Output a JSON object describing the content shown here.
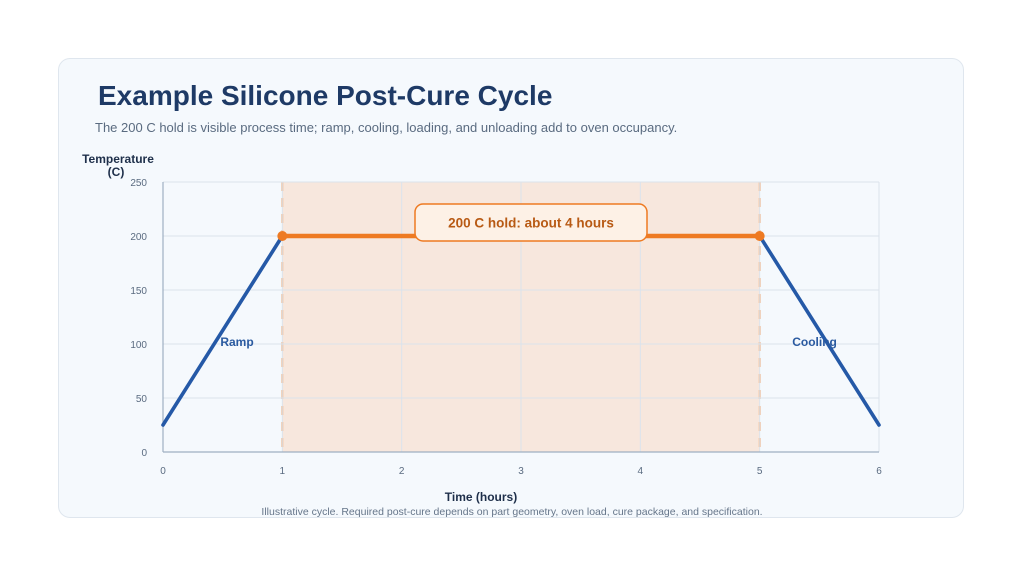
{
  "title": "Example Silicone Post-Cure Cycle",
  "subtitle": "The 200 C hold is visible process time; ramp, cooling, loading, and unloading add to oven occupancy.",
  "footnote": "Illustrative cycle. Required post-cure depends on part geometry, oven load, cure package, and specification.",
  "colors": {
    "line": "#2559a7",
    "hold": "#ee7a22",
    "hold_region": "#f7e7dd",
    "hold_boundary": "#f08a3a",
    "grid": "#dbe3ec",
    "axis": "#9fb0c2"
  },
  "chart_data": {
    "type": "line",
    "xlabel": "Time (hours)",
    "ylabel": "Temperature (C)",
    "xlim": [
      0,
      6
    ],
    "ylim": [
      0,
      250
    ],
    "x_ticks": [
      0,
      1,
      2,
      3,
      4,
      5,
      6
    ],
    "y_ticks": [
      0,
      50,
      100,
      150,
      200,
      250
    ],
    "grid": true,
    "series": [
      {
        "x": [
          0,
          1,
          5,
          6
        ],
        "y": [
          25,
          200,
          200,
          25
        ]
      }
    ],
    "hold": {
      "x_start": 1,
      "x_end": 5,
      "temperature": 200,
      "label": "200 C hold: about 4 hours"
    },
    "annotations": [
      {
        "text": "Ramp",
        "x": 0.62,
        "y": 98
      },
      {
        "text": "Cooling",
        "x": 5.46,
        "y": 98
      }
    ]
  }
}
